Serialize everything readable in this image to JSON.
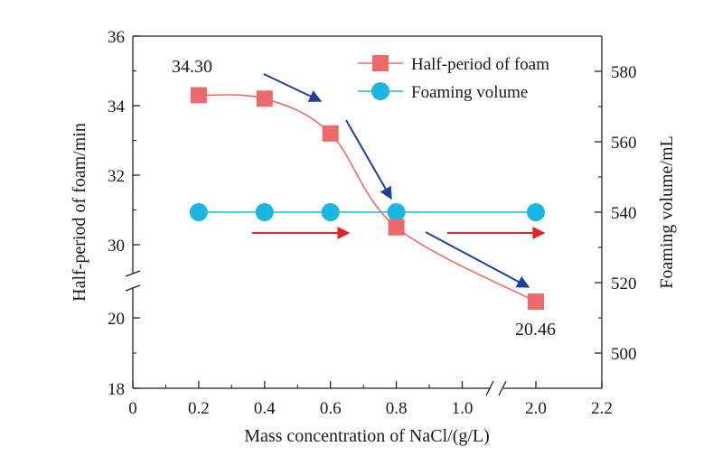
{
  "chart_data": {
    "type": "line",
    "xlabel": "Mass concentration of NaCl/(g/L)",
    "ylabel_left": "Half-period of foam/min",
    "ylabel_right": "Foaming volume/mL",
    "x_ticks": [
      "0",
      "0.2",
      "0.4",
      "0.6",
      "0.8",
      "1.0",
      "2.0",
      "2.2"
    ],
    "xlim": [
      0,
      2.2
    ],
    "x_axis_break_between": [
      1.0,
      2.0
    ],
    "y_left_ticks": [
      "18",
      "20",
      "30",
      "32",
      "34",
      "36"
    ],
    "y_left_axis_break_between": [
      20,
      30
    ],
    "y_right_ticks": [
      "500",
      "520",
      "540",
      "560",
      "580"
    ],
    "ylim_right": [
      490,
      590
    ],
    "legend_position": "top-right",
    "grid": false,
    "series": [
      {
        "name": "Half-period of foam",
        "axis": "left",
        "color": "#ee6a6a",
        "marker": "square",
        "x": [
          0.2,
          0.4,
          0.6,
          0.8,
          2.0
        ],
        "values": [
          34.3,
          34.2,
          33.2,
          30.5,
          20.46
        ]
      },
      {
        "name": "Foaming volume",
        "axis": "right",
        "color": "#1ab5e0",
        "marker": "circle",
        "x": [
          0.2,
          0.4,
          0.6,
          0.8,
          2.0
        ],
        "values": [
          540,
          540,
          540,
          540,
          540
        ]
      }
    ],
    "annotations": [
      {
        "text": "34.30"
      },
      {
        "text": "20.46"
      }
    ],
    "trend_arrows": [
      {
        "color": "#1f3f9a",
        "direction": "down"
      },
      {
        "color": "#1f3f9a",
        "direction": "down"
      },
      {
        "color": "#1f3f9a",
        "direction": "down"
      },
      {
        "color": "#e8202a",
        "direction": "right"
      },
      {
        "color": "#e8202a",
        "direction": "right"
      }
    ]
  }
}
